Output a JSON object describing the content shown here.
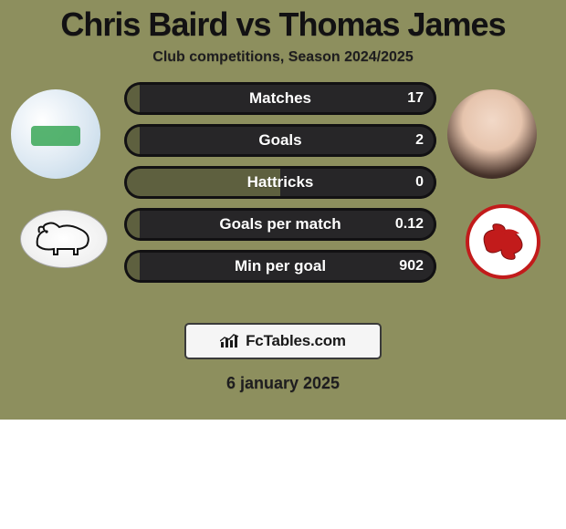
{
  "colors": {
    "background": "#8d8f5e",
    "title": "#121113",
    "subtitle": "#1e1d1f",
    "bar_border": "#121113",
    "bar_left_fill": "#5e603f",
    "bar_right_fill": "#272628",
    "bar_label": "#ffffff",
    "bar_value": "#ffffff",
    "attribution_bg": "#f5f5f5",
    "attribution_border": "#3a3a3a",
    "attribution_text": "#1a1a1a",
    "date": "#1e1d1f",
    "crest_right_red": "#c21b1b"
  },
  "title": "Chris Baird vs Thomas James",
  "subtitle": "Club competitions, Season 2024/2025",
  "date": "6 january 2025",
  "attribution": {
    "prefix": "Fc",
    "suffix": "Tables.com"
  },
  "players": {
    "left": {
      "name": "Chris Baird"
    },
    "right": {
      "name": "Thomas James"
    }
  },
  "bars": [
    {
      "label": "Matches",
      "left_pct": 5,
      "right_pct": 95,
      "left_value": "",
      "right_value": "17"
    },
    {
      "label": "Goals",
      "left_pct": 5,
      "right_pct": 95,
      "left_value": "",
      "right_value": "2"
    },
    {
      "label": "Hattricks",
      "left_pct": 50,
      "right_pct": 50,
      "left_value": "",
      "right_value": "0"
    },
    {
      "label": "Goals per match",
      "left_pct": 5,
      "right_pct": 95,
      "left_value": "",
      "right_value": "0.12"
    },
    {
      "label": "Min per goal",
      "left_pct": 5,
      "right_pct": 95,
      "left_value": "",
      "right_value": "902"
    }
  ]
}
